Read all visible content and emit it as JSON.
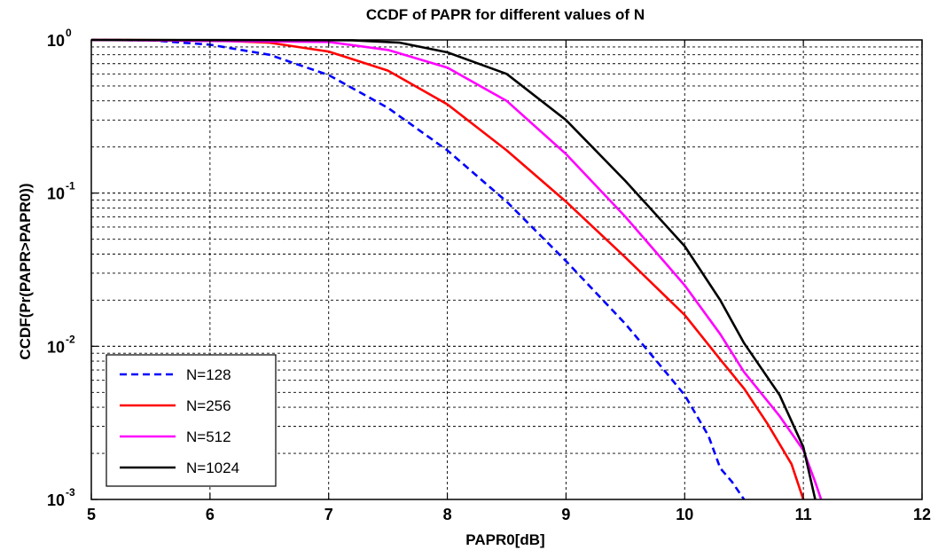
{
  "chart_data": {
    "type": "line",
    "title": "CCDF of PAPR for different values of N",
    "xlabel": "PAPR0[dB]",
    "ylabel": "CCDF(Pr(PAPR>PAPR0))",
    "xlim": [
      5,
      12
    ],
    "ylim": [
      0.001,
      1
    ],
    "yscale": "log",
    "grid": true,
    "legend_position": "bottom-left",
    "xticks": [
      "5",
      "6",
      "7",
      "8",
      "9",
      "10",
      "11",
      "12"
    ],
    "yticks": [
      {
        "base": "10",
        "exp": "0"
      },
      {
        "base": "10",
        "exp": "-1"
      },
      {
        "base": "10",
        "exp": "-2"
      },
      {
        "base": "10",
        "exp": "-3"
      }
    ],
    "series": [
      {
        "name": "N=128",
        "color": "#0000ff",
        "dash": "dashed",
        "x": [
          5.0,
          5.5,
          6.0,
          6.5,
          7.0,
          7.5,
          8.0,
          8.5,
          9.0,
          9.5,
          9.8,
          10.0,
          10.2,
          10.3,
          10.4,
          10.5
        ],
        "y": [
          1.0,
          0.995,
          0.93,
          0.8,
          0.59,
          0.36,
          0.19,
          0.088,
          0.036,
          0.014,
          0.0074,
          0.0048,
          0.0026,
          0.0016,
          0.0013,
          0.001
        ]
      },
      {
        "name": "N=256",
        "color": "#ff0000",
        "dash": "solid",
        "x": [
          5.0,
          6.0,
          6.5,
          7.0,
          7.5,
          8.0,
          8.5,
          9.0,
          9.5,
          10.0,
          10.3,
          10.5,
          10.7,
          10.9,
          11.0
        ],
        "y": [
          1.0,
          0.995,
          0.96,
          0.84,
          0.63,
          0.38,
          0.19,
          0.088,
          0.038,
          0.016,
          0.0082,
          0.0053,
          0.0031,
          0.0017,
          0.001
        ]
      },
      {
        "name": "N=512",
        "color": "#ff00ff",
        "dash": "solid",
        "x": [
          5.0,
          7.0,
          7.5,
          8.0,
          8.5,
          9.0,
          9.5,
          10.0,
          10.3,
          10.5,
          10.8,
          11.0,
          11.1,
          11.15
        ],
        "y": [
          1.0,
          0.97,
          0.86,
          0.66,
          0.4,
          0.18,
          0.07,
          0.025,
          0.012,
          0.0068,
          0.0035,
          0.0021,
          0.0013,
          0.001
        ]
      },
      {
        "name": "N=1024",
        "color": "#000000",
        "dash": "solid",
        "x": [
          5.0,
          7.2,
          7.6,
          8.0,
          8.5,
          9.0,
          9.5,
          10.0,
          10.3,
          10.5,
          10.8,
          11.0,
          11.1
        ],
        "y": [
          1.0,
          0.995,
          0.96,
          0.83,
          0.6,
          0.3,
          0.12,
          0.045,
          0.02,
          0.0105,
          0.0048,
          0.0022,
          0.001
        ]
      }
    ]
  }
}
